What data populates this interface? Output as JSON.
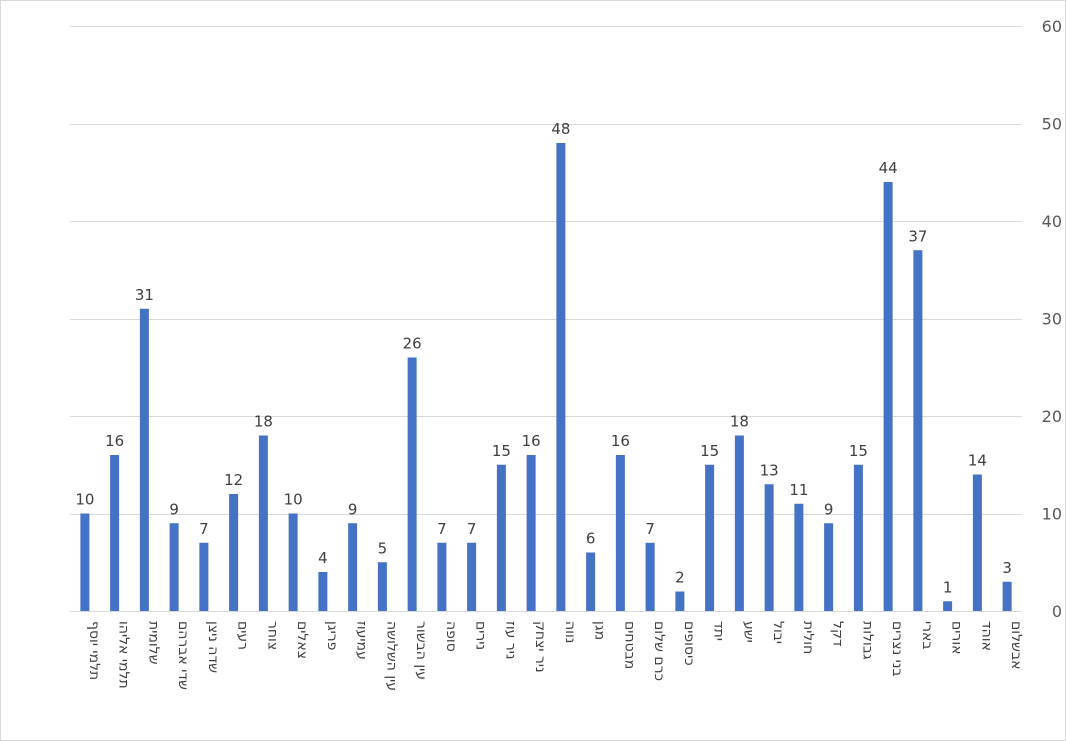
{
  "chart_data": {
    "type": "bar",
    "categories": [
      "תלמי יוסף",
      "תלמי אליהו",
      "שלומית",
      "שדי אברהם",
      "שדה ניצן",
      "רעים",
      "צוחר",
      "צאלים",
      "פריגן",
      "עמיעוז",
      "עין השלושה",
      "עין הבשור",
      "סופה",
      "נירים",
      "ניר עוז",
      "ניר יצחק",
      "נווה",
      "מגן",
      "מבטחים",
      "כרם שלום",
      "כיסופים",
      "יתד",
      "ישע",
      "יבול",
      "חולית",
      "דקל",
      "גבולות",
      "בני נצרים",
      "בארי",
      "אורים",
      "אוהד",
      "אבשלום"
    ],
    "values": [
      10,
      16,
      31,
      9,
      7,
      12,
      18,
      10,
      4,
      9,
      5,
      26,
      7,
      7,
      15,
      16,
      48,
      6,
      16,
      7,
      2,
      15,
      18,
      13,
      11,
      9,
      15,
      44,
      37,
      1,
      14,
      3
    ],
    "title": "",
    "xlabel": "",
    "ylabel": "",
    "ylim": [
      0,
      60
    ],
    "yticks": [
      0,
      10,
      20,
      30,
      40,
      50,
      60
    ],
    "y_axis_side": "right",
    "grid": true,
    "data_labels": true,
    "colors": {
      "bar": "#4472c4",
      "grid": "#d9d9d9",
      "text": "#595959"
    }
  }
}
